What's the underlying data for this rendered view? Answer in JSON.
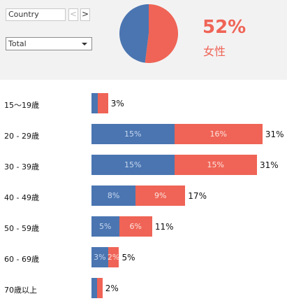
{
  "filters": {
    "country_label": "Country",
    "nav_prev": "<",
    "nav_next": ">",
    "total_select_value": "Total"
  },
  "summary": {
    "female_share": 0.52,
    "female_percent_text": "52%",
    "female_label": "女性",
    "colors": {
      "male": "#4a75b1",
      "female": "#ef6456"
    }
  },
  "age_groups": [
    {
      "label": "15〜19歳",
      "male": 1.2,
      "female": 1.8,
      "male_text": "",
      "female_text": "",
      "total_text": "3%"
    },
    {
      "label": "20 - 29歳",
      "male": 15,
      "female": 16,
      "male_text": "15%",
      "female_text": "16%",
      "total_text": "31%"
    },
    {
      "label": "30 - 39歳",
      "male": 15,
      "female": 15,
      "male_text": "15%",
      "female_text": "15%",
      "total_text": "31%"
    },
    {
      "label": "40 - 49歳",
      "male": 8,
      "female": 9,
      "male_text": "8%",
      "female_text": "9%",
      "total_text": "17%"
    },
    {
      "label": "50 - 59歳",
      "male": 5,
      "female": 6,
      "male_text": "5%",
      "female_text": "6%",
      "total_text": "11%"
    },
    {
      "label": "60 - 69歳",
      "male": 3,
      "female": 2,
      "male_text": "3%",
      "female_text": "2%",
      "total_text": "5%"
    },
    {
      "label": "70歳以上",
      "male": 1,
      "female": 1,
      "male_text": "",
      "female_text": "",
      "total_text": "2%"
    }
  ]
}
